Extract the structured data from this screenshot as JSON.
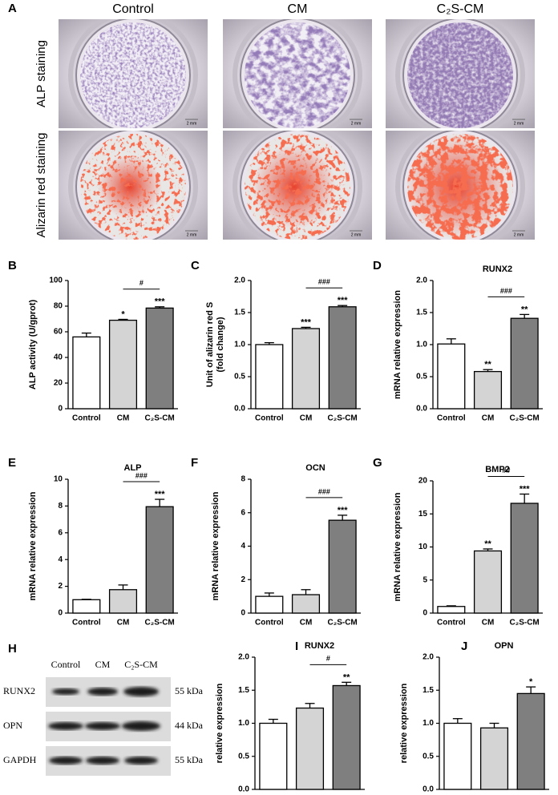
{
  "panel_a": {
    "label": "A",
    "columns": [
      "Control",
      "CM",
      "C₂S-CM"
    ],
    "rows": [
      "ALP staining",
      "Alizarin red staining"
    ],
    "scale_bar": "2 mm"
  },
  "panel_h": {
    "label": "H",
    "columns": [
      "Control",
      "CM",
      "C₂S-CM"
    ],
    "proteins": [
      "RUNX2",
      "OPN",
      "GAPDH"
    ],
    "sizes": [
      "55 kDa",
      "44 kDa",
      "55 kDa"
    ]
  },
  "chart_data": [
    {
      "type": "bar",
      "panel": "B",
      "ylabel": "ALP activity (U/gprot)",
      "categories": [
        "Control",
        "CM",
        "C₂S-CM"
      ],
      "values": [
        56,
        69,
        78.5
      ],
      "errors": [
        3,
        0.7,
        1
      ],
      "colors": [
        "#ffffff",
        "#d4d4d4",
        "#7f7f7f"
      ],
      "annotations": [
        null,
        "*",
        "***"
      ],
      "bracket_label": "#",
      "ylim": [
        0,
        100
      ],
      "yticks": [
        0,
        20,
        40,
        60,
        80,
        100
      ]
    },
    {
      "type": "bar",
      "panel": "C",
      "ylabel": [
        "Unit of alizarin red S",
        "(fold change)"
      ],
      "categories": [
        "Control",
        "CM",
        "C₂S-CM"
      ],
      "values": [
        1.0,
        1.25,
        1.59
      ],
      "errors": [
        0.03,
        0.02,
        0.02
      ],
      "colors": [
        "#ffffff",
        "#d4d4d4",
        "#7f7f7f"
      ],
      "annotations": [
        null,
        "***",
        "***"
      ],
      "bracket_label": "###",
      "ylim": [
        0,
        2
      ],
      "yticks": [
        {
          "value": 0,
          "label": "0.0"
        },
        0.5,
        {
          "value": 1,
          "label": "1.0"
        },
        1.5,
        {
          "value": 2,
          "label": "2.0"
        }
      ]
    },
    {
      "type": "bar",
      "panel": "D",
      "title": "RUNX2",
      "ylabel": "mRNA relative expression",
      "categories": [
        "Control",
        "CM",
        "C₂S-CM"
      ],
      "values": [
        1.01,
        0.58,
        1.41
      ],
      "errors": [
        0.08,
        0.03,
        0.06
      ],
      "colors": [
        "#ffffff",
        "#d4d4d4",
        "#7f7f7f"
      ],
      "annotations": [
        null,
        "**",
        "**"
      ],
      "bracket_label": "###",
      "ylim": [
        0,
        2
      ],
      "yticks": [
        {
          "value": 0,
          "label": "0.0"
        },
        0.5,
        {
          "value": 1,
          "label": "1.0"
        },
        1.5,
        {
          "value": 2,
          "label": "2.0"
        }
      ]
    },
    {
      "type": "bar",
      "panel": "E",
      "title": "ALP",
      "ylabel": "mRNA relative expression",
      "categories": [
        "Control",
        "CM",
        "C₂S-CM"
      ],
      "values": [
        1.0,
        1.75,
        7.95
      ],
      "errors": [
        0.03,
        0.35,
        0.55
      ],
      "colors": [
        "#ffffff",
        "#d4d4d4",
        "#7f7f7f"
      ],
      "annotations": [
        null,
        null,
        "***"
      ],
      "bracket_label": "###",
      "ylim": [
        0,
        10
      ],
      "yticks": [
        0,
        2,
        4,
        6,
        8,
        10
      ]
    },
    {
      "type": "bar",
      "panel": "F",
      "title": "OCN",
      "ylabel": "mRNA relative expression",
      "categories": [
        "Control",
        "CM",
        "C₂S-CM"
      ],
      "values": [
        1.0,
        1.1,
        5.55
      ],
      "errors": [
        0.2,
        0.3,
        0.3
      ],
      "colors": [
        "#ffffff",
        "#d4d4d4",
        "#7f7f7f"
      ],
      "annotations": [
        null,
        null,
        "***"
      ],
      "bracket_label": "###",
      "ylim": [
        0,
        8
      ],
      "yticks": [
        0,
        2,
        4,
        6,
        8
      ]
    },
    {
      "type": "bar",
      "panel": "G",
      "title": "BMP2",
      "ylabel": "mRNA relative expression",
      "categories": [
        "Control",
        "CM",
        "C₂S-CM"
      ],
      "values": [
        1.0,
        9.4,
        16.6
      ],
      "errors": [
        0.1,
        0.3,
        1.4
      ],
      "colors": [
        "#ffffff",
        "#d4d4d4",
        "#7f7f7f"
      ],
      "annotations": [
        null,
        "**",
        "***"
      ],
      "bracket_label": "##",
      "ylim": [
        0,
        20
      ],
      "yticks": [
        0,
        5,
        10,
        15,
        20
      ]
    },
    {
      "type": "bar",
      "panel": "I",
      "title": "RUNX2",
      "ylabel": "relative expression",
      "categories": [
        "Control",
        "CM",
        "C₂S-CM"
      ],
      "values": [
        1.0,
        1.23,
        1.57
      ],
      "errors": [
        0.06,
        0.07,
        0.05
      ],
      "colors": [
        "#ffffff",
        "#d4d4d4",
        "#7f7f7f"
      ],
      "annotations": [
        null,
        null,
        "**"
      ],
      "bracket_label": "#",
      "ylim": [
        0,
        2
      ],
      "yticks": [
        {
          "value": 0,
          "label": "0.0"
        },
        0.5,
        {
          "value": 1,
          "label": "1.0"
        },
        1.5,
        {
          "value": 2,
          "label": "2.0"
        }
      ]
    },
    {
      "type": "bar",
      "panel": "J",
      "title": "OPN",
      "ylabel": "relative expression",
      "categories": [
        "Control",
        "CM",
        "C₂S-CM"
      ],
      "values": [
        1.0,
        0.93,
        1.45
      ],
      "errors": [
        0.07,
        0.07,
        0.1
      ],
      "colors": [
        "#ffffff",
        "#d4d4d4",
        "#7f7f7f"
      ],
      "annotations": [
        null,
        null,
        "*"
      ],
      "ylim": [
        0,
        2
      ],
      "yticks": [
        {
          "value": 0,
          "label": "0.0"
        },
        0.5,
        {
          "value": 1,
          "label": "1.0"
        },
        1.5,
        {
          "value": 2,
          "label": "2.0"
        }
      ]
    }
  ]
}
